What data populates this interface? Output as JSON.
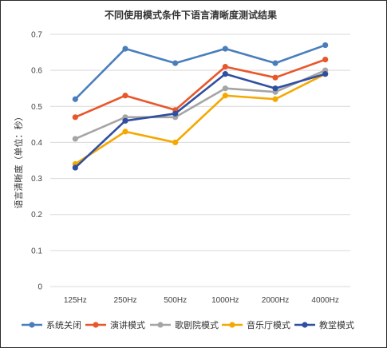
{
  "chart_data": {
    "type": "line",
    "title": "不同使用模式条件下语言清晰度测试结果",
    "ylabel": "语言清晰度（单位：秒）",
    "xlabel": "",
    "categories": [
      "125Hz",
      "250Hz",
      "500Hz",
      "1000Hz",
      "2000Hz",
      "4000Hz"
    ],
    "ylim": [
      0,
      0.7
    ],
    "yticks": [
      "0",
      "0.1",
      "0.2",
      "0.3",
      "0.4",
      "0.5",
      "0.6",
      "0.7"
    ],
    "grid": true,
    "legend_position": "bottom",
    "series": [
      {
        "name": "系统关闭",
        "color": "#4A7EBB",
        "values": [
          0.52,
          0.66,
          0.62,
          0.66,
          0.62,
          0.67
        ]
      },
      {
        "name": "演讲模式",
        "color": "#E8572A",
        "values": [
          0.47,
          0.53,
          0.49,
          0.61,
          0.58,
          0.63
        ]
      },
      {
        "name": "歌剧院模式",
        "color": "#A5A5A5",
        "values": [
          0.41,
          0.47,
          0.47,
          0.55,
          0.54,
          0.6
        ]
      },
      {
        "name": "音乐厅模式",
        "color": "#F5A800",
        "values": [
          0.34,
          0.43,
          0.4,
          0.53,
          0.52,
          0.59
        ]
      },
      {
        "name": "教堂模式",
        "color": "#2F4FA0",
        "values": [
          0.33,
          0.46,
          0.48,
          0.59,
          0.55,
          0.59
        ]
      }
    ]
  }
}
